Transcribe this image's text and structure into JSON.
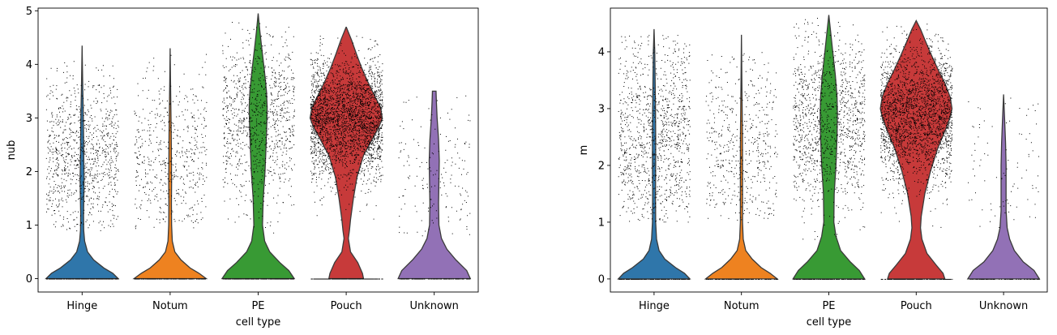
{
  "chart_data": [
    {
      "type": "violin",
      "xlabel": "cell type",
      "ylabel": "nub",
      "categories": [
        "Hinge",
        "Notum",
        "PE",
        "Pouch",
        "Unknown"
      ],
      "colors": [
        "#2f76aa",
        "#ee8220",
        "#389a34",
        "#c73a3a",
        "#9271b6"
      ],
      "ylim": [
        -0.25,
        5.05
      ],
      "yticks": [
        0,
        1,
        2,
        3,
        4,
        5
      ],
      "grid": false,
      "series": [
        {
          "category": "Hinge",
          "max": 4.35,
          "density": [
            [
              0,
              1.0
            ],
            [
              0.1,
              0.85
            ],
            [
              0.2,
              0.6
            ],
            [
              0.35,
              0.32
            ],
            [
              0.5,
              0.15
            ],
            [
              0.7,
              0.07
            ],
            [
              0.9,
              0.045
            ],
            [
              1.2,
              0.04
            ],
            [
              1.6,
              0.05
            ],
            [
              1.9,
              0.055
            ],
            [
              2.3,
              0.045
            ],
            [
              2.7,
              0.04
            ],
            [
              3.1,
              0.032
            ],
            [
              3.5,
              0.02
            ],
            [
              3.9,
              0.01
            ],
            [
              4.35,
              0
            ]
          ],
          "points": {
            "count": 950,
            "zero_count": 200,
            "zero_spread": 1.0,
            "mode": 2.3,
            "sd": 0.75,
            "min": 0.9,
            "max": 4.1
          }
        },
        {
          "category": "Notum",
          "max": 4.3,
          "density": [
            [
              0,
              1.0
            ],
            [
              0.1,
              0.8
            ],
            [
              0.2,
              0.55
            ],
            [
              0.35,
              0.3
            ],
            [
              0.5,
              0.13
            ],
            [
              0.7,
              0.06
            ],
            [
              1.0,
              0.04
            ],
            [
              1.4,
              0.035
            ],
            [
              1.8,
              0.04
            ],
            [
              2.2,
              0.035
            ],
            [
              2.7,
              0.03
            ],
            [
              3.2,
              0.02
            ],
            [
              3.7,
              0.01
            ],
            [
              4.3,
              0
            ]
          ],
          "points": {
            "count": 520,
            "zero_count": 160,
            "zero_spread": 1.0,
            "mode": 2.1,
            "sd": 0.8,
            "min": 0.9,
            "max": 4.2
          }
        },
        {
          "category": "PE",
          "max": 4.95,
          "density": [
            [
              0,
              1.0
            ],
            [
              0.15,
              0.85
            ],
            [
              0.3,
              0.6
            ],
            [
              0.5,
              0.32
            ],
            [
              0.7,
              0.18
            ],
            [
              1.0,
              0.12
            ],
            [
              1.5,
              0.14
            ],
            [
              2.0,
              0.19
            ],
            [
              2.5,
              0.22
            ],
            [
              2.9,
              0.24
            ],
            [
              3.2,
              0.25
            ],
            [
              3.5,
              0.23
            ],
            [
              3.9,
              0.17
            ],
            [
              4.3,
              0.1
            ],
            [
              4.6,
              0.05
            ],
            [
              4.95,
              0
            ]
          ],
          "points": {
            "count": 1000,
            "zero_count": 220,
            "zero_spread": 1.0,
            "mode": 3.0,
            "sd": 0.8,
            "min": 0.8,
            "max": 4.8
          }
        },
        {
          "category": "Pouch",
          "max": 4.7,
          "density": [
            [
              0,
              0.48
            ],
            [
              0.1,
              0.45
            ],
            [
              0.3,
              0.32
            ],
            [
              0.5,
              0.12
            ],
            [
              0.75,
              0.06
            ],
            [
              0.9,
              0.09
            ],
            [
              1.1,
              0.12
            ],
            [
              1.5,
              0.2
            ],
            [
              1.9,
              0.3
            ],
            [
              2.3,
              0.48
            ],
            [
              2.6,
              0.72
            ],
            [
              2.85,
              0.92
            ],
            [
              3.0,
              1.0
            ],
            [
              3.2,
              0.95
            ],
            [
              3.45,
              0.76
            ],
            [
              3.7,
              0.58
            ],
            [
              3.95,
              0.42
            ],
            [
              4.2,
              0.28
            ],
            [
              4.45,
              0.15
            ],
            [
              4.7,
              0
            ]
          ],
          "points": {
            "count": 2800,
            "zero_count": 250,
            "zero_spread": 1.0,
            "mode": 3.0,
            "sd": 0.55,
            "min": 0.85,
            "max": 4.55
          }
        },
        {
          "category": "Unknown",
          "max": 3.5,
          "density": [
            [
              0,
              1.0
            ],
            [
              0.15,
              0.9
            ],
            [
              0.35,
              0.6
            ],
            [
              0.55,
              0.35
            ],
            [
              0.75,
              0.2
            ],
            [
              1.0,
              0.13
            ],
            [
              1.4,
              0.12
            ],
            [
              1.8,
              0.13
            ],
            [
              2.2,
              0.14
            ],
            [
              2.6,
              0.12
            ],
            [
              3.0,
              0.08
            ],
            [
              3.3,
              0.06
            ],
            [
              3.5,
              0.05
            ]
          ],
          "points": {
            "count": 170,
            "zero_count": 120,
            "zero_spread": 1.0,
            "mode": 1.8,
            "sd": 0.85,
            "min": 0.8,
            "max": 3.45
          }
        }
      ]
    },
    {
      "type": "violin",
      "xlabel": "cell type",
      "ylabel": "m",
      "categories": [
        "Hinge",
        "Notum",
        "PE",
        "Pouch",
        "Unknown"
      ],
      "colors": [
        "#2f76aa",
        "#ee8220",
        "#389a34",
        "#c73a3a",
        "#9271b6"
      ],
      "ylim": [
        -0.23,
        4.77
      ],
      "yticks": [
        0,
        1,
        2,
        3,
        4
      ],
      "grid": false,
      "series": [
        {
          "category": "Hinge",
          "max": 4.4,
          "density": [
            [
              0,
              1.0
            ],
            [
              0.1,
              0.85
            ],
            [
              0.2,
              0.6
            ],
            [
              0.35,
              0.3
            ],
            [
              0.5,
              0.14
            ],
            [
              0.7,
              0.07
            ],
            [
              1.0,
              0.045
            ],
            [
              1.5,
              0.04
            ],
            [
              2.0,
              0.045
            ],
            [
              2.5,
              0.045
            ],
            [
              3.0,
              0.04
            ],
            [
              3.5,
              0.03
            ],
            [
              4.0,
              0.02
            ],
            [
              4.4,
              0
            ]
          ],
          "points": {
            "count": 1100,
            "zero_count": 150,
            "zero_spread": 1.0,
            "mode": 2.5,
            "sd": 0.9,
            "min": 1.0,
            "max": 4.3
          }
        },
        {
          "category": "Notum",
          "max": 4.3,
          "density": [
            [
              0,
              1.0
            ],
            [
              0.1,
              0.8
            ],
            [
              0.2,
              0.55
            ],
            [
              0.35,
              0.3
            ],
            [
              0.5,
              0.12
            ],
            [
              0.7,
              0.05
            ],
            [
              1.0,
              0.03
            ],
            [
              1.5,
              0.03
            ],
            [
              2.0,
              0.03
            ],
            [
              2.5,
              0.028
            ],
            [
              3.0,
              0.02
            ],
            [
              3.5,
              0.012
            ],
            [
              4.3,
              0
            ]
          ],
          "points": {
            "count": 520,
            "zero_count": 120,
            "zero_spread": 1.0,
            "mode": 2.3,
            "sd": 0.85,
            "min": 1.0,
            "max": 4.0
          }
        },
        {
          "category": "PE",
          "max": 4.65,
          "density": [
            [
              0,
              1.0
            ],
            [
              0.15,
              0.85
            ],
            [
              0.3,
              0.6
            ],
            [
              0.5,
              0.33
            ],
            [
              0.75,
              0.2
            ],
            [
              1.0,
              0.14
            ],
            [
              1.5,
              0.15
            ],
            [
              2.0,
              0.2
            ],
            [
              2.5,
              0.23
            ],
            [
              2.9,
              0.24
            ],
            [
              3.2,
              0.23
            ],
            [
              3.6,
              0.18
            ],
            [
              4.0,
              0.11
            ],
            [
              4.3,
              0.06
            ],
            [
              4.65,
              0
            ]
          ],
          "points": {
            "count": 1200,
            "zero_count": 150,
            "zero_spread": 1.0,
            "mode": 2.8,
            "sd": 0.8,
            "min": 0.7,
            "max": 4.6
          }
        },
        {
          "category": "Pouch",
          "max": 4.55,
          "density": [
            [
              0,
              0.8
            ],
            [
              0.1,
              0.75
            ],
            [
              0.25,
              0.55
            ],
            [
              0.45,
              0.3
            ],
            [
              0.7,
              0.16
            ],
            [
              0.9,
              0.12
            ],
            [
              1.1,
              0.14
            ],
            [
              1.5,
              0.24
            ],
            [
              1.9,
              0.4
            ],
            [
              2.3,
              0.6
            ],
            [
              2.6,
              0.8
            ],
            [
              2.85,
              0.95
            ],
            [
              3.0,
              1.0
            ],
            [
              3.2,
              0.95
            ],
            [
              3.45,
              0.8
            ],
            [
              3.7,
              0.6
            ],
            [
              3.95,
              0.42
            ],
            [
              4.2,
              0.25
            ],
            [
              4.4,
              0.12
            ],
            [
              4.55,
              0
            ]
          ],
          "points": {
            "count": 2400,
            "zero_count": 180,
            "zero_spread": 1.0,
            "mode": 2.9,
            "sd": 0.6,
            "min": 0.8,
            "max": 4.5
          }
        },
        {
          "category": "Unknown",
          "max": 3.25,
          "density": [
            [
              0,
              1.0
            ],
            [
              0.15,
              0.85
            ],
            [
              0.3,
              0.55
            ],
            [
              0.5,
              0.3
            ],
            [
              0.7,
              0.17
            ],
            [
              0.9,
              0.1
            ],
            [
              1.2,
              0.07
            ],
            [
              1.6,
              0.07
            ],
            [
              2.0,
              0.07
            ],
            [
              2.4,
              0.055
            ],
            [
              2.8,
              0.03
            ],
            [
              3.25,
              0
            ]
          ],
          "points": {
            "count": 90,
            "zero_count": 80,
            "zero_spread": 1.0,
            "mode": 1.8,
            "sd": 0.9,
            "min": 0.9,
            "max": 3.2
          }
        }
      ]
    }
  ]
}
